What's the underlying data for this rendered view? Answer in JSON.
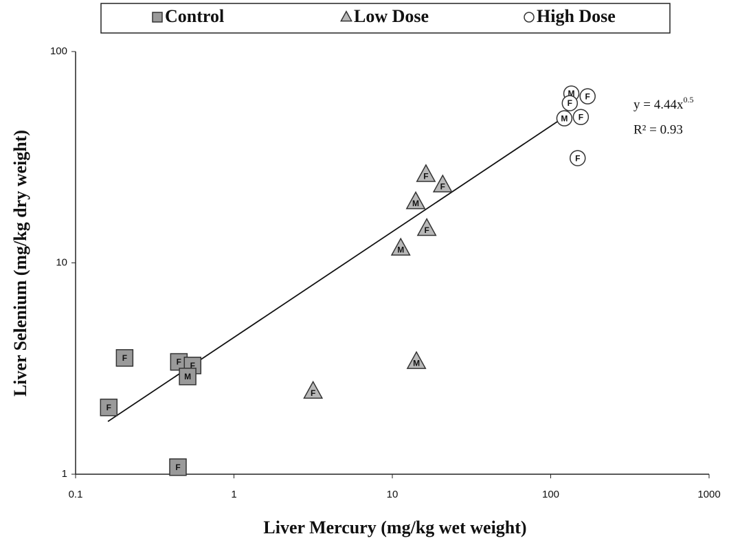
{
  "chart_data": {
    "type": "scatter",
    "x_label": "Liver Mercury (mg/kg wet weight)",
    "y_label": "Liver Selenium (mg/kg dry weight)",
    "xlim": [
      0.1,
      1000
    ],
    "ylim": [
      1,
      100
    ],
    "xticks": [
      0.1,
      1,
      10,
      100,
      1000
    ],
    "yticks": [
      1,
      10,
      100
    ],
    "log_x": true,
    "log_y": true,
    "grid": false,
    "legend": "top",
    "series": [
      {
        "name": "Control",
        "marker": "square",
        "color": "#9a9a9a",
        "x": [
          0.204,
          0.162,
          0.449,
          0.548,
          0.51,
          0.443
        ],
        "values": [
          3.55,
          2.07,
          3.4,
          3.27,
          2.9,
          1.08
        ],
        "labels": [
          "F",
          "F",
          "F",
          "F",
          "M",
          "F"
        ]
      },
      {
        "name": "Low Dose",
        "marker": "triangle",
        "color": "#b8b8b8",
        "x": [
          16.3,
          20.8,
          14.05,
          16.5,
          11.3,
          14.2,
          3.16
        ],
        "values": [
          26.1,
          23.3,
          19.4,
          14.5,
          11.7,
          3.4,
          2.46
        ],
        "labels": [
          "F",
          "F",
          "M",
          "F",
          "M",
          "M",
          "F"
        ]
      },
      {
        "name": "High Dose",
        "marker": "circle",
        "color": "#ffffff",
        "x": [
          135,
          171,
          132,
          122,
          155,
          148
        ],
        "values": [
          63.3,
          61.4,
          57,
          48.3,
          49,
          31.3
        ],
        "labels": [
          "M",
          "F",
          "F",
          "M",
          "F",
          "F"
        ]
      }
    ],
    "trendline": {
      "a": 4.44,
      "b": 0.5,
      "x_start": 0.16,
      "x_end": 130
    },
    "equation_text": "y = 4.44x",
    "equation_exponent": "0.5",
    "r_squared_text": "R² = 0.93"
  }
}
